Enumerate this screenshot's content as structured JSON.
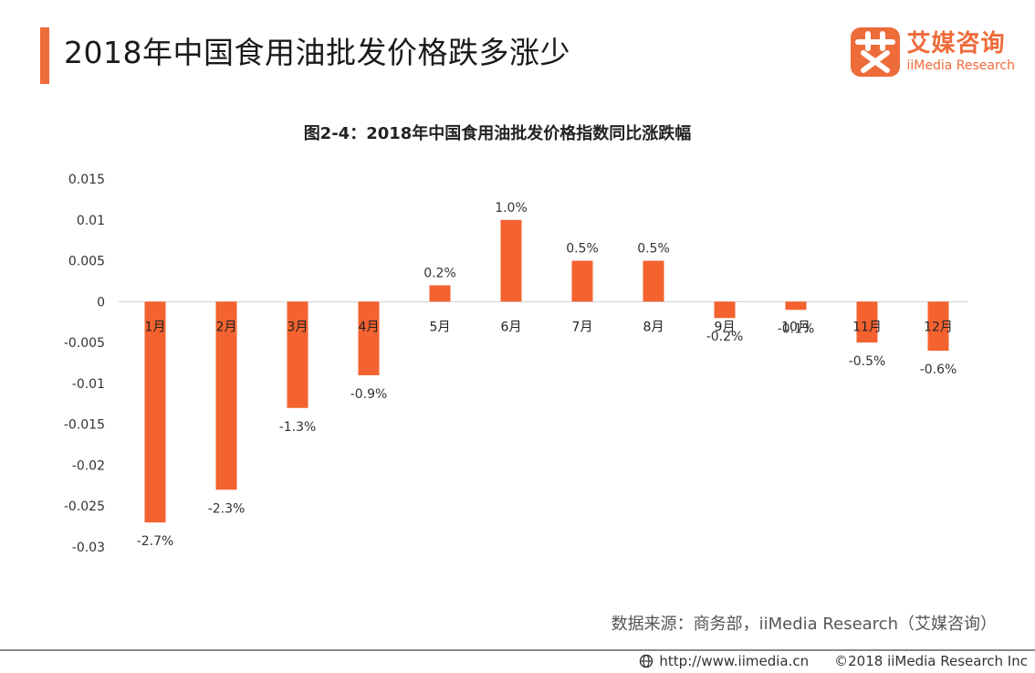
{
  "header": {
    "title": "2018年中国食用油批发价格跌多涨少"
  },
  "brand": {
    "name_cn": "艾媒咨询",
    "name_en": "iiMedia Research",
    "mark_char": "艾",
    "color": "#ee6b3a"
  },
  "chart_data": {
    "type": "bar",
    "title": "图2-4：2018年中国食用油批发价格指数同比涨跌幅",
    "xlabel": "",
    "ylabel": "",
    "categories": [
      "1月",
      "2月",
      "3月",
      "4月",
      "5月",
      "6月",
      "7月",
      "8月",
      "9月",
      "10月",
      "11月",
      "12月"
    ],
    "values": [
      -0.027,
      -0.023,
      -0.013,
      -0.009,
      0.002,
      0.01,
      0.005,
      0.005,
      -0.002,
      -0.001,
      -0.005,
      -0.006
    ],
    "data_labels": [
      "-2.7%",
      "-2.3%",
      "-1.3%",
      "-0.9%",
      "0.2%",
      "1.0%",
      "0.5%",
      "0.5%",
      "-0.2%",
      "-0.1%",
      "-0.5%",
      "-0.6%"
    ],
    "ylim": [
      -0.03,
      0.015
    ],
    "yticks": [
      0.015,
      0.01,
      0.005,
      0,
      -0.005,
      -0.01,
      -0.015,
      -0.02,
      -0.025,
      -0.03
    ],
    "ytick_labels": [
      "0.015",
      "0.01",
      "0.005",
      "0",
      "-0.005",
      "-0.01",
      "-0.015",
      "-0.02",
      "-0.025",
      "-0.03"
    ],
    "bar_color": "#f4622f",
    "grid": false,
    "legend": "none"
  },
  "source": {
    "text": "数据来源：商务部，iiMedia Research（艾媒咨询）"
  },
  "footer": {
    "url": "http://www.iimedia.cn",
    "copyright": "©2018  iiMedia Research  Inc",
    "icon": "globe-icon"
  }
}
